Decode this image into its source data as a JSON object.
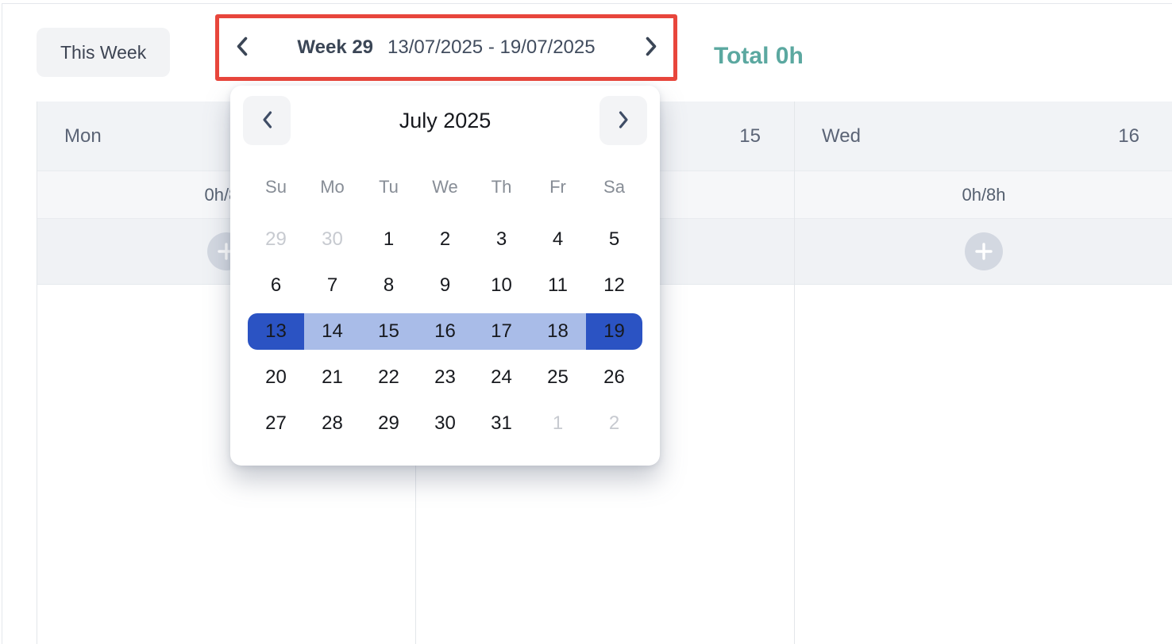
{
  "colors": {
    "annotation_red": "#e8463c",
    "total_teal": "#5ba8a0",
    "range_dark": "#2b53c3",
    "range_light": "#a9bce8"
  },
  "toolbar": {
    "this_week_label": "This Week",
    "prev_week_icon": "chevron-left",
    "next_week_icon": "chevron-right",
    "week_label": "Week 29",
    "week_range": "13/07/2025 - 19/07/2025",
    "total_label": "Total 0h"
  },
  "datepicker": {
    "title": "July 2025",
    "prev_icon": "chevron-left",
    "next_icon": "chevron-right",
    "weekdays": [
      "Su",
      "Mo",
      "Tu",
      "We",
      "Th",
      "Fr",
      "Sa"
    ],
    "selected_start_day": "13",
    "selected_end_day": "19",
    "weeks": [
      [
        {
          "d": "29",
          "muted": true
        },
        {
          "d": "30",
          "muted": true
        },
        {
          "d": "1"
        },
        {
          "d": "2"
        },
        {
          "d": "3"
        },
        {
          "d": "4"
        },
        {
          "d": "5"
        }
      ],
      [
        {
          "d": "6"
        },
        {
          "d": "7"
        },
        {
          "d": "8"
        },
        {
          "d": "9"
        },
        {
          "d": "10"
        },
        {
          "d": "11"
        },
        {
          "d": "12"
        }
      ],
      [
        {
          "d": "13",
          "sel": "dark-start"
        },
        {
          "d": "14",
          "sel": "light"
        },
        {
          "d": "15",
          "sel": "light"
        },
        {
          "d": "16",
          "sel": "light"
        },
        {
          "d": "17",
          "sel": "light"
        },
        {
          "d": "18",
          "sel": "light"
        },
        {
          "d": "19",
          "sel": "dark-end"
        }
      ],
      [
        {
          "d": "20"
        },
        {
          "d": "21"
        },
        {
          "d": "22"
        },
        {
          "d": "23"
        },
        {
          "d": "24"
        },
        {
          "d": "25"
        },
        {
          "d": "26"
        }
      ],
      [
        {
          "d": "27"
        },
        {
          "d": "28"
        },
        {
          "d": "29"
        },
        {
          "d": "30"
        },
        {
          "d": "31"
        },
        {
          "d": "1",
          "muted": true
        },
        {
          "d": "2",
          "muted": true
        }
      ]
    ]
  },
  "grid": {
    "columns": [
      {
        "id": "mon",
        "day": "Mon",
        "date": "",
        "hours": "0h/8h",
        "show_add": true
      },
      {
        "id": "tue",
        "day": "",
        "date": "15",
        "hours": "",
        "show_add": false
      },
      {
        "id": "wed",
        "day": "Wed",
        "date": "16",
        "hours": "0h/8h",
        "show_add": true
      }
    ],
    "add_icon": "plus"
  }
}
